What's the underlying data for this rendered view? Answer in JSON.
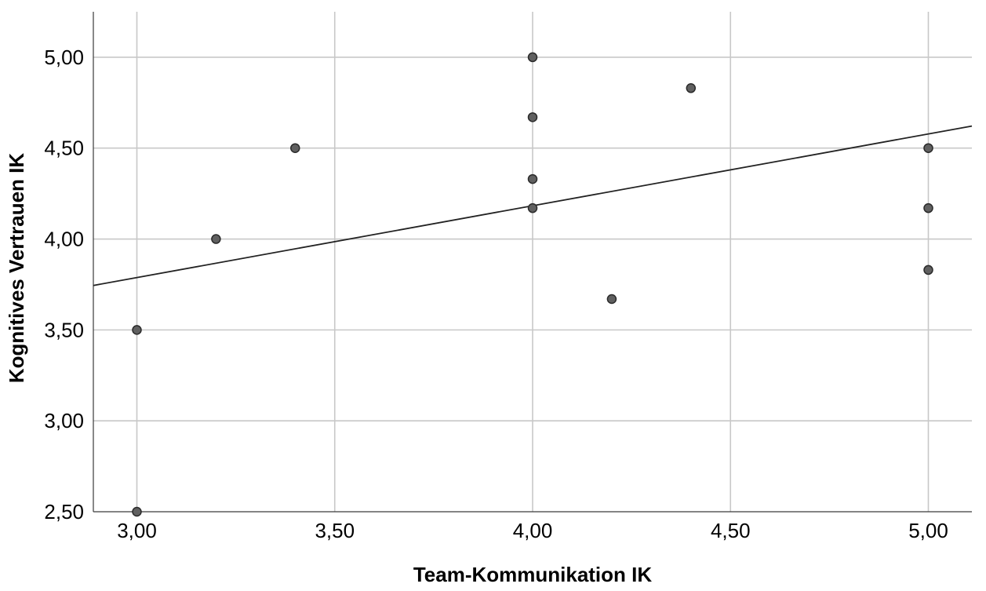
{
  "chart_data": {
    "type": "scatter",
    "title": "",
    "xlabel": "Team-Kommunikation IK",
    "ylabel": "Kognitives Vertrauen IK",
    "xlim": [
      2.89,
      5.11
    ],
    "ylim": [
      2.5,
      5.25
    ],
    "x_ticks": [
      3.0,
      3.5,
      4.0,
      4.5,
      5.0
    ],
    "x_tick_labels": [
      "3,00",
      "3,50",
      "4,00",
      "4,50",
      "5,00"
    ],
    "y_ticks": [
      2.5,
      3.0,
      3.5,
      4.0,
      4.5,
      5.0
    ],
    "y_tick_labels": [
      "2,50",
      "3,00",
      "3,50",
      "4,00",
      "4,50",
      "5,00"
    ],
    "grid": true,
    "colors": {
      "point_fill": "#606060",
      "point_stroke": "#2a2a2a",
      "grid": "#c8c8c8",
      "fit_line": "#222222"
    },
    "points": [
      {
        "x": 3.0,
        "y": 2.5
      },
      {
        "x": 3.0,
        "y": 3.5
      },
      {
        "x": 3.2,
        "y": 4.0
      },
      {
        "x": 3.4,
        "y": 4.5
      },
      {
        "x": 4.0,
        "y": 5.0
      },
      {
        "x": 4.0,
        "y": 4.67
      },
      {
        "x": 4.0,
        "y": 4.33
      },
      {
        "x": 4.0,
        "y": 4.17
      },
      {
        "x": 4.2,
        "y": 3.67
      },
      {
        "x": 4.4,
        "y": 4.83
      },
      {
        "x": 5.0,
        "y": 4.5
      },
      {
        "x": 5.0,
        "y": 4.17
      },
      {
        "x": 5.0,
        "y": 3.83
      }
    ],
    "fit_line": {
      "type": "linear",
      "intercept": 2.603,
      "slope": 0.395
    }
  }
}
